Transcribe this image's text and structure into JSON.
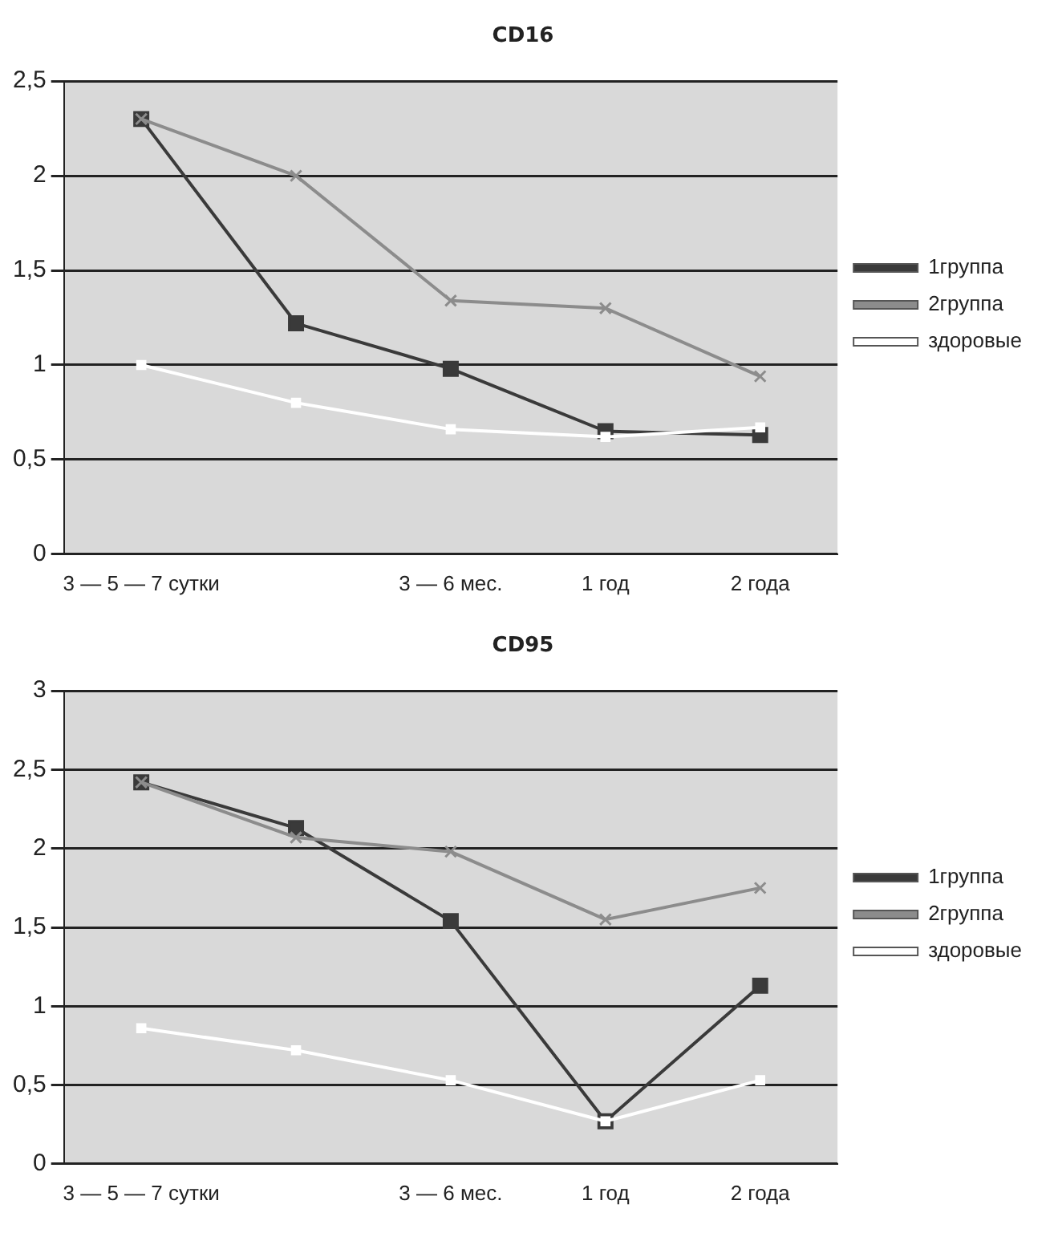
{
  "chart_data": [
    {
      "type": "line",
      "title": "CD16",
      "categories": [
        "3 — 5 — 7 сутки",
        null,
        "3 — 6 мес.",
        "1 год",
        "2 года"
      ],
      "ylim": [
        0,
        2.5
      ],
      "yticks": [
        {
          "value": 0,
          "label": "0"
        },
        {
          "value": 0.5,
          "label": "0,5"
        },
        {
          "value": 1,
          "label": "1"
        },
        {
          "value": 1.5,
          "label": "1,5"
        },
        {
          "value": 2,
          "label": "2"
        },
        {
          "value": 2.5,
          "label": "2,5"
        }
      ],
      "grid": "y",
      "legend": "right",
      "series": [
        {
          "name": "1группа",
          "color": "#3a3a3a",
          "marker": "square",
          "values": [
            2.3,
            1.22,
            0.98,
            0.65,
            0.63
          ]
        },
        {
          "name": "2группа",
          "color": "#8c8c8c",
          "marker": "cross",
          "values": [
            2.3,
            2.0,
            1.34,
            1.3,
            0.94
          ]
        },
        {
          "name": "здоровые",
          "color": "#ffffff",
          "marker": "square",
          "values": [
            1.0,
            0.8,
            0.66,
            0.62,
            0.67
          ]
        }
      ]
    },
    {
      "type": "line",
      "title": "CD95",
      "categories": [
        "3 — 5 — 7 сутки",
        null,
        "3 — 6 мес.",
        "1 год",
        "2 года"
      ],
      "ylim": [
        0,
        3
      ],
      "yticks": [
        {
          "value": 0,
          "label": "0"
        },
        {
          "value": 0.5,
          "label": "0,5"
        },
        {
          "value": 1,
          "label": "1"
        },
        {
          "value": 1.5,
          "label": "1,5"
        },
        {
          "value": 2,
          "label": "2"
        },
        {
          "value": 2.5,
          "label": "2,5"
        },
        {
          "value": 3,
          "label": "3"
        }
      ],
      "grid": "y",
      "legend": "right",
      "series": [
        {
          "name": "1группа",
          "color": "#3a3a3a",
          "marker": "square",
          "values": [
            2.42,
            2.13,
            1.54,
            0.27,
            1.13
          ]
        },
        {
          "name": "2группа",
          "color": "#8c8c8c",
          "marker": "cross",
          "values": [
            2.42,
            2.07,
            1.98,
            1.55,
            1.75
          ]
        },
        {
          "name": "здоровые",
          "color": "#ffffff",
          "marker": "square",
          "values": [
            0.86,
            0.72,
            0.53,
            0.27,
            0.53
          ]
        }
      ]
    }
  ]
}
